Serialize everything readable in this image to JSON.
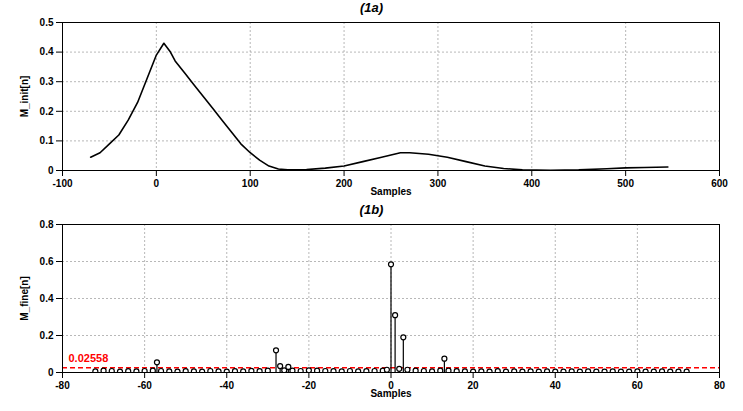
{
  "chart_data": [
    {
      "type": "line",
      "title": "(1a)",
      "xlabel": "Samples",
      "ylabel": "M_init[n]",
      "x": [
        -70,
        -60,
        -50,
        -40,
        -30,
        -20,
        -10,
        0,
        8,
        15,
        20,
        30,
        40,
        50,
        60,
        70,
        80,
        90,
        100,
        110,
        120,
        130,
        140,
        160,
        180,
        200,
        220,
        240,
        260,
        270,
        290,
        310,
        330,
        350,
        370,
        390,
        420,
        450,
        480,
        500,
        520,
        545
      ],
      "values": [
        0.045,
        0.06,
        0.09,
        0.12,
        0.17,
        0.23,
        0.31,
        0.39,
        0.43,
        0.4,
        0.37,
        0.33,
        0.29,
        0.25,
        0.21,
        0.17,
        0.13,
        0.09,
        0.06,
        0.035,
        0.015,
        0.005,
        0.002,
        0.003,
        0.008,
        0.015,
        0.03,
        0.045,
        0.06,
        0.06,
        0.055,
        0.045,
        0.03,
        0.015,
        0.007,
        0.002,
        0.001,
        0.002,
        0.006,
        0.009,
        0.01,
        0.012
      ],
      "color": "black",
      "xlim": [
        -100,
        600
      ],
      "xticks": [
        -100,
        0,
        100,
        200,
        300,
        400,
        500,
        600
      ],
      "ylim": [
        0,
        0.5
      ],
      "yticks": [
        0,
        0.1,
        0.2,
        0.3,
        0.4,
        0.5
      ],
      "grid": true
    },
    {
      "type": "stem",
      "title": "(1b)",
      "xlabel": "Samples",
      "ylabel": "M_fine[n]",
      "x": [
        -72,
        -70,
        -68,
        -66,
        -64,
        -62,
        -60,
        -58,
        -57,
        -56,
        -54,
        -52,
        -50,
        -48,
        -46,
        -44,
        -42,
        -40,
        -38,
        -36,
        -34,
        -32,
        -30,
        -28,
        -27,
        -26,
        -25,
        -24,
        -22,
        -20,
        -18,
        -16,
        -14,
        -12,
        -10,
        -8,
        -6,
        -4,
        -2,
        -1,
        0,
        1,
        2,
        3,
        4,
        6,
        8,
        10,
        12,
        13,
        14,
        16,
        18,
        20,
        22,
        24,
        26,
        28,
        30,
        32,
        34,
        36,
        38,
        40,
        42,
        44,
        46,
        48,
        50,
        52,
        54,
        56,
        58,
        60,
        62,
        64,
        66,
        68,
        70,
        72
      ],
      "values": [
        0.006,
        0.01,
        0.008,
        0.005,
        0.007,
        0.006,
        0.008,
        0.01,
        0.055,
        0.008,
        0.006,
        0.005,
        0.007,
        0.006,
        0.005,
        0.008,
        0.006,
        0.005,
        0.007,
        0.006,
        0.009,
        0.007,
        0.01,
        0.12,
        0.035,
        0.012,
        0.03,
        0.01,
        0.008,
        0.012,
        0.01,
        0.008,
        0.007,
        0.006,
        0.008,
        0.006,
        0.007,
        0.008,
        0.01,
        0.015,
        0.585,
        0.31,
        0.02,
        0.19,
        0.015,
        0.01,
        0.008,
        0.006,
        0.01,
        0.075,
        0.01,
        0.007,
        0.006,
        0.005,
        0.006,
        0.005,
        0.007,
        0.005,
        0.006,
        0.005,
        0.006,
        0.005,
        0.006,
        0.005,
        0.005,
        0.006,
        0.005,
        0.006,
        0.005,
        0.005,
        0.006,
        0.005,
        0.005,
        0.006,
        0.005,
        0.005,
        0.006,
        0.005,
        0.005,
        0.005
      ],
      "color": "black",
      "marker": "circle",
      "threshold": {
        "value": 0.02558,
        "label": "0.02558",
        "color": "red",
        "line_style": "dashed"
      },
      "xlim": [
        -80,
        80
      ],
      "xticks": [
        -80,
        -60,
        -40,
        -20,
        0,
        20,
        40,
        60,
        80
      ],
      "ylim": [
        0,
        0.8
      ],
      "yticks": [
        0,
        0.2,
        0.4,
        0.6,
        0.8
      ],
      "grid": true
    }
  ]
}
